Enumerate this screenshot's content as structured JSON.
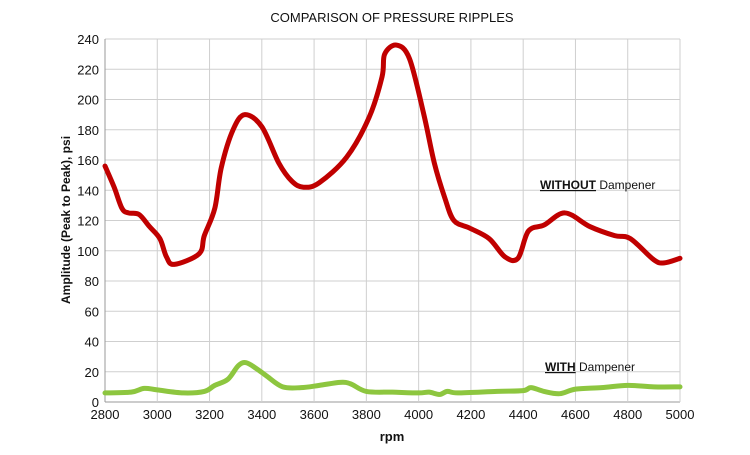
{
  "chart_data": {
    "type": "line",
    "title": "COMPARISON OF PRESSURE RIPPLES",
    "xlabel": "rpm",
    "ylabel": "Amplitude (Peak to Peak), psi",
    "xlim": [
      2800,
      5000
    ],
    "ylim": [
      0,
      240
    ],
    "xticks": [
      2800,
      3000,
      3200,
      3400,
      3600,
      3800,
      4000,
      4200,
      4400,
      4600,
      4800,
      5000
    ],
    "yticks": [
      0,
      20,
      40,
      60,
      80,
      100,
      120,
      140,
      160,
      180,
      200,
      220,
      240
    ],
    "grid": true,
    "legend": "none",
    "series": [
      {
        "color": "#c00000",
        "annotation": {
          "underlined": "WITHOUT",
          "rest": " Dampener"
        },
        "points": [
          [
            2800,
            156
          ],
          [
            2835,
            142
          ],
          [
            2865,
            128
          ],
          [
            2890,
            125
          ],
          [
            2930,
            124
          ],
          [
            2970,
            116
          ],
          [
            3010,
            108
          ],
          [
            3035,
            96
          ],
          [
            3065,
            91
          ],
          [
            3160,
            98
          ],
          [
            3180,
            110
          ],
          [
            3220,
            128
          ],
          [
            3245,
            155
          ],
          [
            3290,
            180
          ],
          [
            3335,
            190
          ],
          [
            3400,
            182
          ],
          [
            3465,
            158
          ],
          [
            3515,
            146
          ],
          [
            3560,
            142
          ],
          [
            3620,
            145
          ],
          [
            3725,
            162
          ],
          [
            3810,
            188
          ],
          [
            3860,
            215
          ],
          [
            3870,
            230
          ],
          [
            3915,
            236
          ],
          [
            3965,
            227
          ],
          [
            4020,
            190
          ],
          [
            4060,
            158
          ],
          [
            4100,
            135
          ],
          [
            4135,
            120
          ],
          [
            4195,
            115
          ],
          [
            4270,
            108
          ],
          [
            4330,
            96
          ],
          [
            4380,
            95
          ],
          [
            4420,
            113
          ],
          [
            4480,
            117
          ],
          [
            4560,
            125
          ],
          [
            4655,
            116
          ],
          [
            4750,
            110
          ],
          [
            4810,
            108
          ],
          [
            4900,
            94
          ],
          [
            4940,
            92
          ],
          [
            5000,
            95
          ]
        ]
      },
      {
        "color": "#8dc63f",
        "annotation": {
          "underlined": "WITH",
          "rest": " Dampener"
        },
        "points": [
          [
            2800,
            6
          ],
          [
            2900,
            6.5
          ],
          [
            2950,
            9
          ],
          [
            3000,
            8
          ],
          [
            3100,
            6
          ],
          [
            3180,
            7
          ],
          [
            3220,
            11
          ],
          [
            3270,
            15
          ],
          [
            3310,
            24
          ],
          [
            3340,
            26
          ],
          [
            3380,
            22
          ],
          [
            3420,
            17
          ],
          [
            3480,
            10
          ],
          [
            3550,
            9.5
          ],
          [
            3620,
            11
          ],
          [
            3700,
            13
          ],
          [
            3740,
            12
          ],
          [
            3800,
            7
          ],
          [
            3900,
            6.5
          ],
          [
            4000,
            6
          ],
          [
            4040,
            6.5
          ],
          [
            4080,
            5
          ],
          [
            4110,
            7
          ],
          [
            4150,
            6
          ],
          [
            4300,
            7
          ],
          [
            4400,
            7.5
          ],
          [
            4430,
            9.5
          ],
          [
            4480,
            7
          ],
          [
            4540,
            5.5
          ],
          [
            4600,
            8.5
          ],
          [
            4700,
            9.5
          ],
          [
            4800,
            11
          ],
          [
            4900,
            10
          ],
          [
            5000,
            10
          ]
        ]
      }
    ]
  }
}
